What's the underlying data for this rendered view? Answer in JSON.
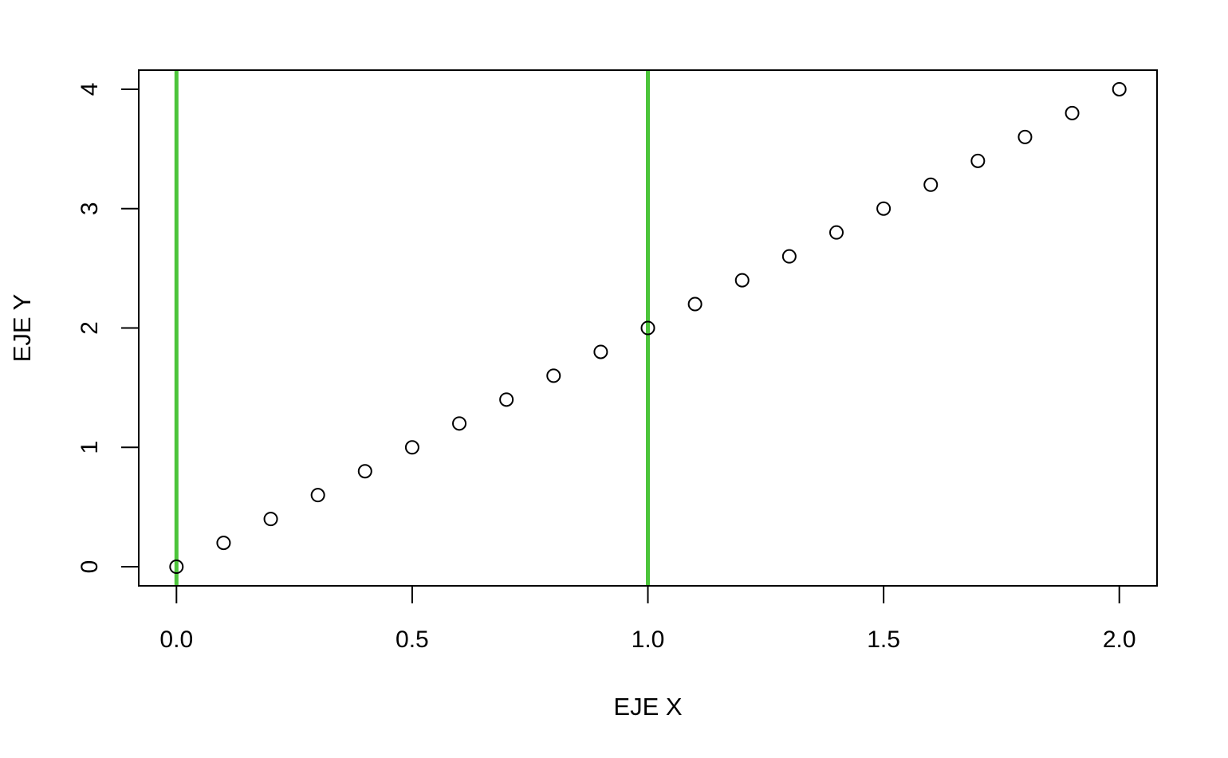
{
  "chart_data": {
    "type": "scatter",
    "title": "",
    "xlabel": "EJE X",
    "ylabel": "EJE Y",
    "xlim": [
      -0.08,
      2.08
    ],
    "ylim": [
      -0.16,
      4.16
    ],
    "x_ticks": [
      0.0,
      0.5,
      1.0,
      1.5,
      2.0
    ],
    "x_tick_labels": [
      "0.0",
      "0.5",
      "1.0",
      "1.5",
      "2.0"
    ],
    "y_ticks": [
      0,
      1,
      2,
      3,
      4
    ],
    "y_tick_labels": [
      "0",
      "1",
      "2",
      "3",
      "4"
    ],
    "grid": false,
    "legend": "none",
    "series": [
      {
        "marker": "open-circle",
        "color": "#000000",
        "x": [
          0.0,
          0.1,
          0.2,
          0.3,
          0.4,
          0.5,
          0.6,
          0.7,
          0.8,
          0.9,
          1.0,
          1.1,
          1.2,
          1.3,
          1.4,
          1.5,
          1.6,
          1.7,
          1.8,
          1.9,
          2.0
        ],
        "y": [
          0.0,
          0.2,
          0.4,
          0.6,
          0.8,
          1.0,
          1.2,
          1.4,
          1.6,
          1.8,
          2.0,
          2.2,
          2.4,
          2.6,
          2.8,
          3.0,
          3.2,
          3.4,
          3.6,
          3.8,
          4.0
        ]
      }
    ],
    "vertical_lines": [
      {
        "x": 0.0,
        "color": "#4cc43a"
      },
      {
        "x": 1.0,
        "color": "#4cc43a"
      }
    ]
  }
}
